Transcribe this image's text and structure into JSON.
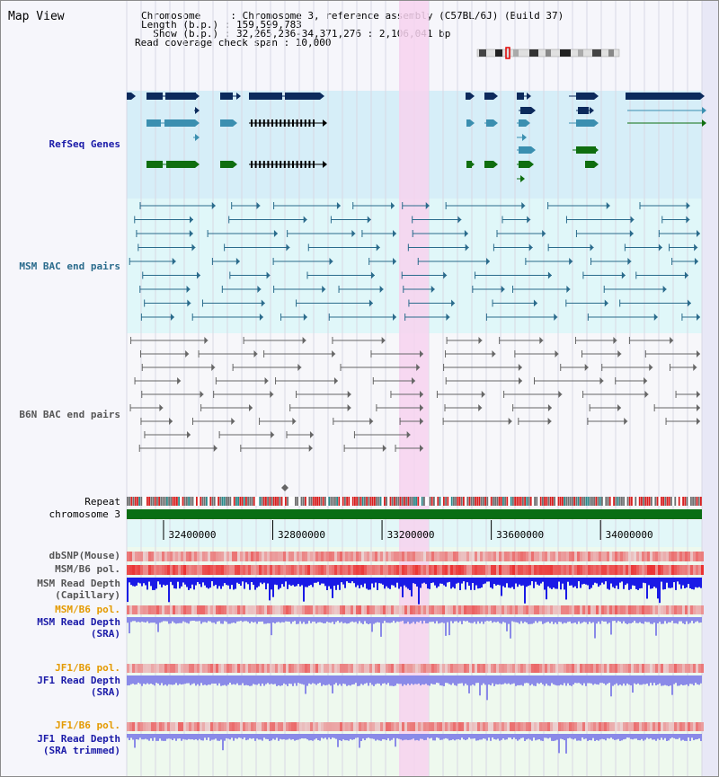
{
  "page": {
    "title": "Map View"
  },
  "header": {
    "line1": "Chromosome     : Chromosome 3, reference assembly (C57BL/6J) (Build 37)",
    "line2": "Length (b.p.) : 159,599,783",
    "line3": "  Show (b.p.) : 32,265,236-34,371,276 : 2,106,041 bp",
    "line4": "Read coverage check span : 10,000"
  },
  "tracks": {
    "refseq": "RefSeq Genes",
    "msm_bac": "MSM BAC end pairs",
    "b6n_bac": "B6N BAC end pairs",
    "repeat": "Repeat",
    "chromosome": "chromosome 3",
    "dbsnp": "dbSNP(Mouse)",
    "msm_b6_pol": "MSM/B6 pol.",
    "msm_read_depth_cap_1": "MSM Read Depth",
    "msm_read_depth_cap_2": "(Capillary)",
    "msm_b6_pol_sra": "MSM/B6 pol.",
    "msm_read_depth_sra_1": "MSM Read Depth",
    "msm_read_depth_sra_2": "(SRA)",
    "jf1_b6_pol": "JF1/B6 pol.",
    "jf1_read_depth_sra_1": "JF1 Read Depth",
    "jf1_read_depth_sra_2": "(SRA)",
    "jf1_b6_pol_trim": "JF1/B6 pol.",
    "jf1_read_depth_trim_1": "JF1 Read Depth",
    "jf1_read_depth_trim_2": "(SRA trimmed)"
  },
  "axis": {
    "ticks": [
      {
        "label": "32400000",
        "value": 32400000
      },
      {
        "label": "32800000",
        "value": 32800000
      },
      {
        "label": "33200000",
        "value": 33200000
      },
      {
        "label": "33600000",
        "value": 33600000
      },
      {
        "label": "34000000",
        "value": 34000000
      }
    ],
    "start": 32265236,
    "end": 34371276
  },
  "colors": {
    "refseq_bg": "#d6eef8",
    "msm_bg": "#e0f7f9",
    "b6n_bg": "#f7f7fa",
    "highlight": "#f7d2ef",
    "gene_dark": "#0c2a5c",
    "gene_mid": "#3b8fb0",
    "gene_green": "#0f6e0f",
    "msm_pair": "#2a6b8c",
    "b6n_pair": "#666666",
    "chromosome": "#0a6e14",
    "depth_blue": "#1a1ae6",
    "depth_light": "#8a8ae8",
    "pol_red": "#e83a3a"
  }
}
